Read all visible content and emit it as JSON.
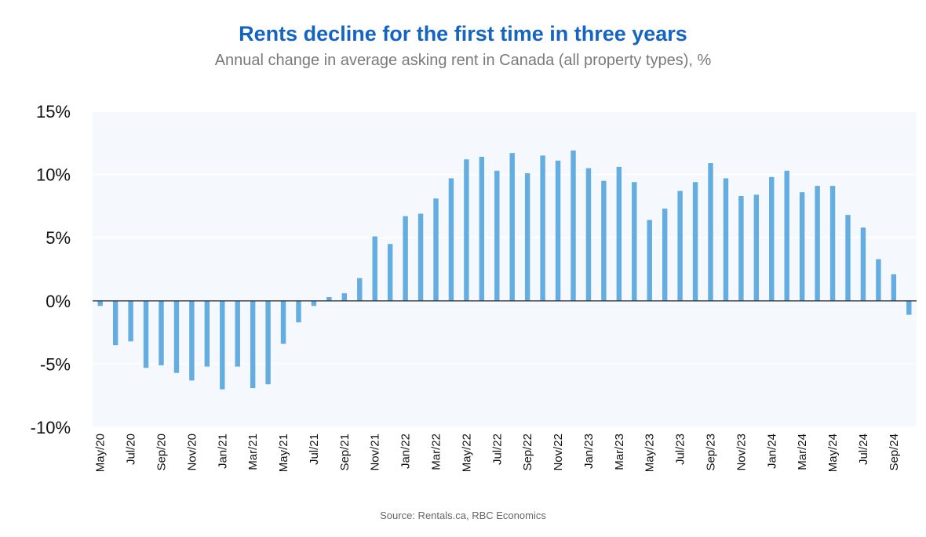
{
  "chart_data": {
    "type": "bar",
    "title": "Rents decline for the first time in three years",
    "subtitle": "Annual change in average asking rent in Canada (all property types), %",
    "source": "Source: Rentals.ca, RBC Economics",
    "ylim": [
      -10,
      15
    ],
    "yticks": [
      15,
      10,
      5,
      0,
      -5,
      -10
    ],
    "ytick_labels": [
      "15%",
      "10%",
      "5%",
      "0%",
      "-5%",
      "-10%"
    ],
    "grid": true,
    "bar_color": "#64ade0",
    "plot_bg": "#f5f8fc",
    "categories": [
      "May/20",
      "Jun/20",
      "Jul/20",
      "Aug/20",
      "Sep/20",
      "Oct/20",
      "Nov/20",
      "Dec/20",
      "Jan/21",
      "Feb/21",
      "Mar/21",
      "Apr/21",
      "May/21",
      "Jun/21",
      "Jul/21",
      "Aug/21",
      "Sep/21",
      "Oct/21",
      "Nov/21",
      "Dec/21",
      "Jan/22",
      "Feb/22",
      "Mar/22",
      "Apr/22",
      "May/22",
      "Jun/22",
      "Jul/22",
      "Aug/22",
      "Sep/22",
      "Oct/22",
      "Nov/22",
      "Dec/22",
      "Jan/23",
      "Feb/23",
      "Mar/23",
      "Apr/23",
      "May/23",
      "Jun/23",
      "Jul/23",
      "Aug/23",
      "Sep/23",
      "Oct/23",
      "Nov/23",
      "Dec/23",
      "Jan/24",
      "Feb/24",
      "Mar/24",
      "Apr/24",
      "May/24",
      "Jun/24",
      "Jul/24",
      "Aug/24",
      "Sep/24",
      "Oct/24"
    ],
    "xtick_labels": [
      "May/20",
      "Jul/20",
      "Sep/20",
      "Nov/20",
      "Jan/21",
      "Mar/21",
      "May/21",
      "Jul/21",
      "Sep/21",
      "Nov/21",
      "Jan/22",
      "Mar/22",
      "May/22",
      "Jul/22",
      "Sep/22",
      "Nov/22",
      "Jan/23",
      "Mar/23",
      "May/23",
      "Jul/23",
      "Sep/23",
      "Nov/23",
      "Jan/24",
      "Mar/24",
      "May/24",
      "Jul/24",
      "Sep/24"
    ],
    "values": [
      -0.4,
      -3.5,
      -3.2,
      -5.3,
      -5.1,
      -5.7,
      -6.3,
      -5.2,
      -7.0,
      -5.2,
      -6.9,
      -6.6,
      -3.4,
      -1.7,
      -0.4,
      0.3,
      0.6,
      1.8,
      5.1,
      4.5,
      6.7,
      6.9,
      8.1,
      9.7,
      11.2,
      11.4,
      10.3,
      11.7,
      10.1,
      11.5,
      11.1,
      11.9,
      10.5,
      9.5,
      10.6,
      9.4,
      6.4,
      7.3,
      8.7,
      9.4,
      10.9,
      9.7,
      8.3,
      8.4,
      9.8,
      10.3,
      8.6,
      9.1,
      9.1,
      6.8,
      5.8,
      3.3,
      2.1,
      -1.1
    ]
  }
}
